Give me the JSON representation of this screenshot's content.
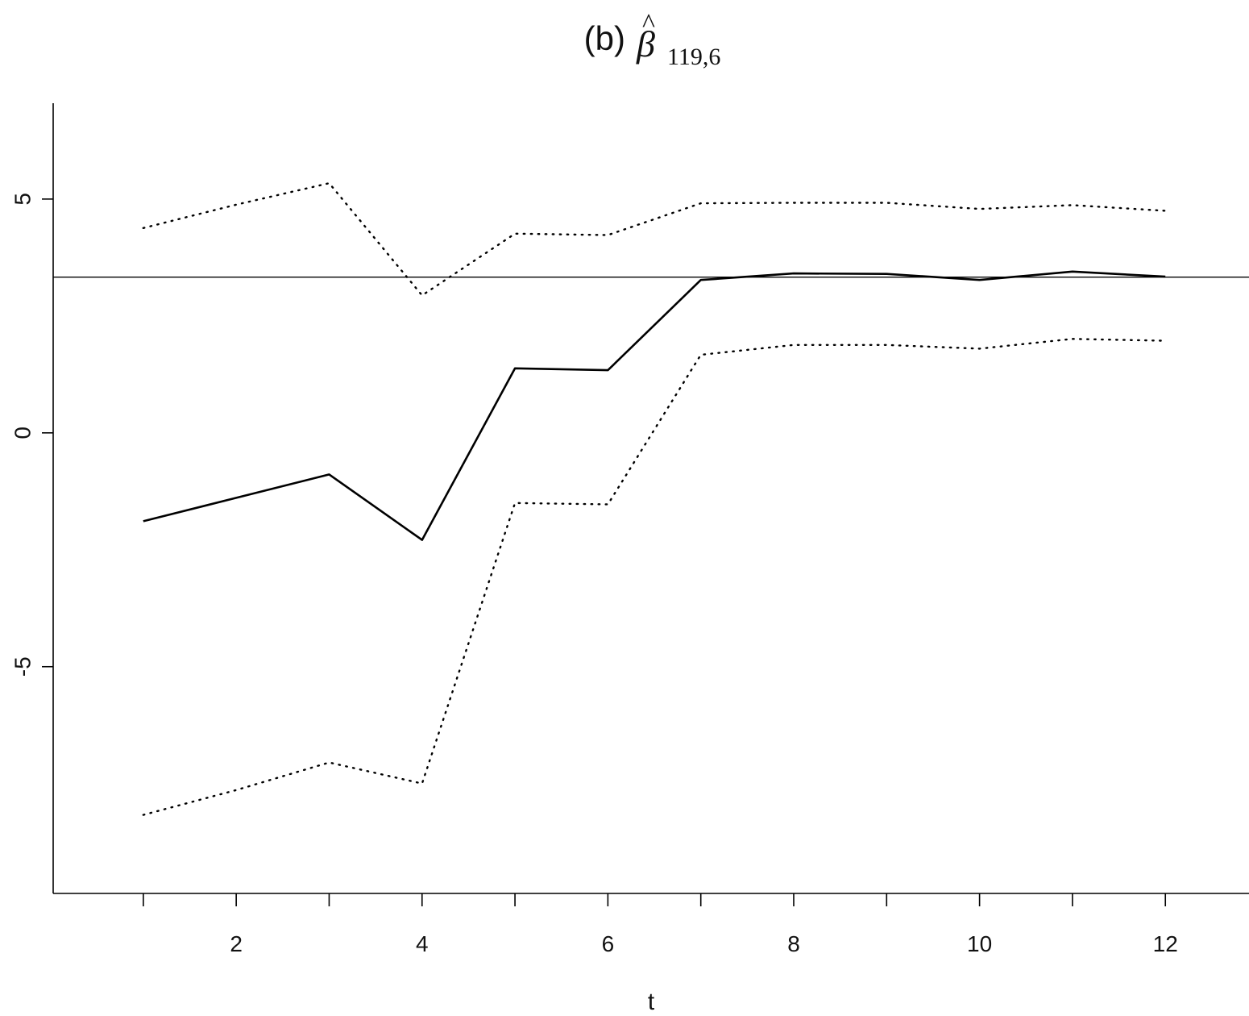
{
  "chart_data": {
    "type": "line",
    "title_prefix": "(b)",
    "title_symbol": "β",
    "title_hat": "^",
    "title_subscript": "119,6",
    "xlabel": "t",
    "ylabel": "",
    "xlim": [
      0.03,
      12.9
    ],
    "ylim": [
      -9.85,
      7.05
    ],
    "x_ticks": [
      1,
      2,
      3,
      4,
      5,
      6,
      7,
      8,
      9,
      10,
      11,
      12
    ],
    "x_tick_labels": [
      "",
      "2",
      "",
      "4",
      "",
      "6",
      "",
      "8",
      "",
      "10",
      "",
      "12"
    ],
    "y_ticks": [
      -5,
      0,
      5
    ],
    "y_tick_labels": [
      "-5",
      "0",
      "5"
    ],
    "reference_line": 3.33,
    "x": [
      1,
      2,
      3,
      4,
      5,
      6,
      7,
      8,
      9,
      10,
      11,
      12
    ],
    "series": [
      {
        "role": "estimate",
        "style": "solid",
        "values": [
          -1.89,
          -1.39,
          -0.89,
          -2.29,
          1.38,
          1.34,
          3.27,
          3.41,
          3.4,
          3.27,
          3.45,
          3.34
        ]
      },
      {
        "role": "upper",
        "style": "dotted",
        "values": [
          4.38,
          4.88,
          5.34,
          2.94,
          4.26,
          4.23,
          4.91,
          4.92,
          4.92,
          4.79,
          4.87,
          4.75
        ]
      },
      {
        "role": "lower",
        "style": "dotted",
        "values": [
          -8.17,
          -7.64,
          -7.05,
          -7.5,
          -1.5,
          -1.53,
          1.67,
          1.88,
          1.88,
          1.8,
          2.01,
          1.97
        ]
      }
    ]
  }
}
